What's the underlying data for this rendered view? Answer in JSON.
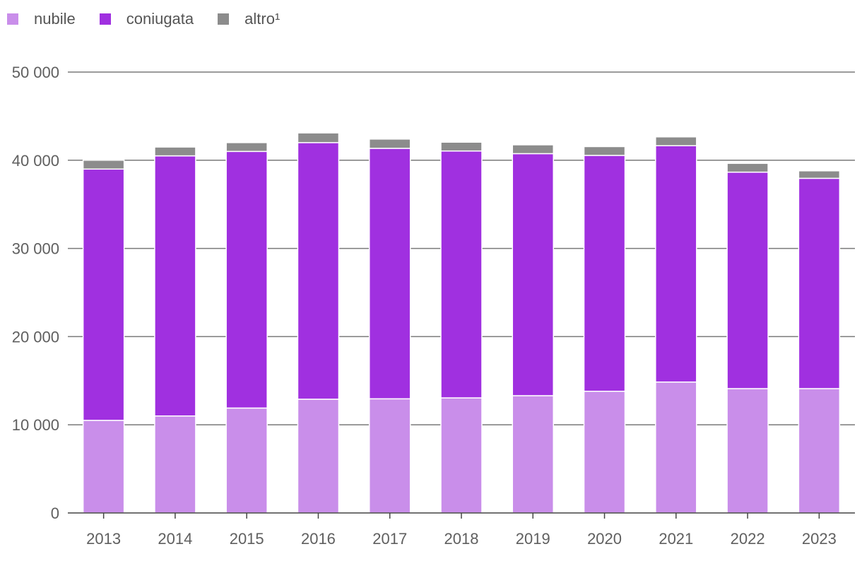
{
  "chart_data": {
    "type": "bar",
    "stacked": true,
    "title": "",
    "xlabel": "",
    "ylabel": "",
    "categories": [
      "2013",
      "2014",
      "2015",
      "2016",
      "2017",
      "2018",
      "2019",
      "2020",
      "2021",
      "2022",
      "2023"
    ],
    "series": [
      {
        "name": "nubile",
        "color": "#c98eea",
        "values": [
          10500,
          11000,
          11900,
          12900,
          12950,
          13050,
          13300,
          13800,
          14850,
          14100,
          14100
        ]
      },
      {
        "name": "coniugata",
        "color": "#a030e0",
        "values": [
          28500,
          29500,
          29100,
          29100,
          28400,
          28000,
          27450,
          26750,
          26800,
          24550,
          23850
        ]
      },
      {
        "name": "altro¹",
        "color": "#8c8c8c",
        "values": [
          1000,
          1000,
          1000,
          1100,
          1050,
          1000,
          1000,
          1000,
          1000,
          1000,
          850
        ]
      }
    ],
    "ylim": [
      0,
      50000
    ],
    "yticks": [
      0,
      10000,
      20000,
      30000,
      40000,
      50000
    ],
    "ytick_labels": [
      "0",
      "10 000",
      "20 000",
      "30 000",
      "40 000",
      "50 000"
    ],
    "grid": true,
    "legend_position": "top-left"
  }
}
